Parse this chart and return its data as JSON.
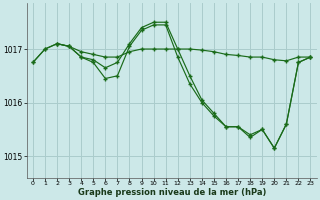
{
  "background_color": "#cce8e8",
  "plot_bg_color": "#cce8e8",
  "grid_color": "#aacccc",
  "line_color": "#1a6b1a",
  "marker_color": "#1a6b1a",
  "title": "Graphe pression niveau de la mer (hPa)",
  "xlim": [
    -0.5,
    23.5
  ],
  "ylim": [
    1014.6,
    1017.85
  ],
  "yticks": [
    1015,
    1016,
    1017
  ],
  "xticks": [
    0,
    1,
    2,
    3,
    4,
    5,
    6,
    7,
    8,
    9,
    10,
    11,
    12,
    13,
    14,
    15,
    16,
    17,
    18,
    19,
    20,
    21,
    22,
    23
  ],
  "series": [
    {
      "x": [
        0,
        1,
        2,
        3,
        4,
        5,
        6,
        7,
        8,
        9,
        10,
        11,
        12,
        13,
        14,
        15,
        16,
        17,
        18,
        19,
        20,
        21,
        22,
        23
      ],
      "y": [
        1016.75,
        1017.0,
        1017.1,
        1017.05,
        1016.85,
        1016.8,
        1016.65,
        1016.75,
        1017.1,
        1017.4,
        1017.5,
        1017.5,
        1017.0,
        1016.5,
        1016.05,
        1015.8,
        1015.55,
        1015.55,
        1015.4,
        1015.5,
        1015.15,
        1015.6,
        1016.75,
        1016.85
      ]
    },
    {
      "x": [
        0,
        1,
        2,
        3,
        4,
        5,
        6,
        7,
        8,
        9,
        10,
        11,
        12,
        13,
        14,
        15,
        16,
        17,
        18,
        19,
        20,
        21,
        22,
        23
      ],
      "y": [
        1016.75,
        1017.0,
        1017.1,
        1017.05,
        1016.95,
        1016.9,
        1016.85,
        1016.85,
        1016.95,
        1017.0,
        1017.0,
        1017.0,
        1017.0,
        1017.0,
        1016.98,
        1016.95,
        1016.9,
        1016.88,
        1016.85,
        1016.85,
        1016.8,
        1016.78,
        1016.85,
        1016.85
      ]
    },
    {
      "x": [
        2,
        3,
        4,
        5,
        6,
        7,
        8,
        9,
        10,
        11,
        12,
        13,
        14,
        15,
        16,
        17,
        18,
        19,
        20,
        21,
        22,
        23
      ],
      "y": [
        1017.1,
        1017.05,
        1016.85,
        1016.75,
        1016.45,
        1016.5,
        1017.05,
        1017.35,
        1017.45,
        1017.45,
        1016.85,
        1016.35,
        1016.0,
        1015.75,
        1015.55,
        1015.55,
        1015.35,
        1015.5,
        1015.15,
        1015.6,
        1016.75,
        1016.85
      ]
    }
  ]
}
